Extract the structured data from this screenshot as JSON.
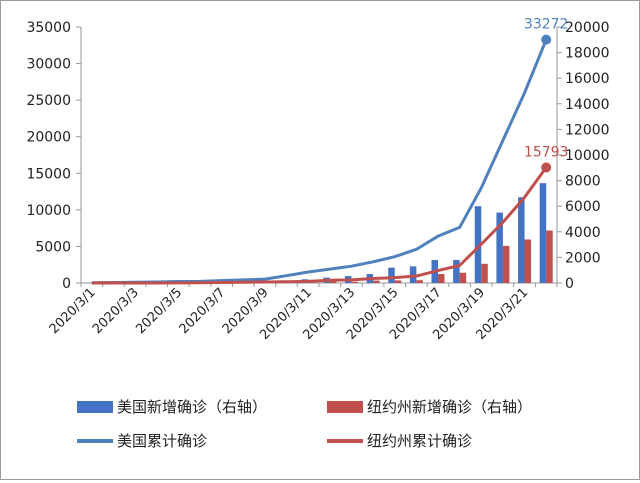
{
  "chart_data": {
    "type": "bar",
    "categories": [
      "2020/3/1",
      "2020/3/2",
      "2020/3/3",
      "2020/3/4",
      "2020/3/5",
      "2020/3/6",
      "2020/3/7",
      "2020/3/8",
      "2020/3/9",
      "2020/3/10",
      "2020/3/11",
      "2020/3/12",
      "2020/3/13",
      "2020/3/14",
      "2020/3/15",
      "2020/3/16",
      "2020/3/17",
      "2020/3/18",
      "2020/3/19",
      "2020/3/20",
      "2020/3/21",
      "2020/3/22"
    ],
    "x_tick_labels": [
      "2020/3/1",
      "2020/3/3",
      "2020/3/5",
      "2020/3/7",
      "2020/3/9",
      "2020/3/11",
      "2020/3/13",
      "2020/3/15",
      "2020/3/17",
      "2020/3/19",
      "2020/3/21"
    ],
    "y_left": {
      "ylim": [
        0,
        35000
      ],
      "ticks": [
        "0",
        "5000",
        "10000",
        "15000",
        "20000",
        "25000",
        "30000",
        "35000"
      ]
    },
    "y_right": {
      "ylim": [
        0,
        20000
      ],
      "ticks": [
        "0",
        "2000",
        "4000",
        "6000",
        "8000",
        "10000",
        "12000",
        "14000",
        "16000",
        "18000",
        "20000"
      ]
    },
    "series": [
      {
        "name": "美国新增确诊（右轴）",
        "kind": "bar",
        "axis": "right",
        "color": "#4472c4",
        "values": [
          10,
          8,
          30,
          20,
          40,
          60,
          70,
          100,
          120,
          200,
          290,
          420,
          540,
          700,
          1200,
          1300,
          1800,
          1800,
          6000,
          5500,
          6700,
          7800
        ]
      },
      {
        "name": "纽约州新增确诊（右轴）",
        "kind": "bar",
        "axis": "right",
        "color": "#c0504d",
        "values": [
          1,
          0,
          1,
          5,
          20,
          11,
          43,
          13,
          36,
          33,
          43,
          158,
          95,
          189,
          203,
          217,
          700,
          800,
          1500,
          2900,
          3400,
          4100
        ]
      },
      {
        "name": "美国累计确诊",
        "kind": "line",
        "axis": "left",
        "color": "#4f81bd",
        "values": [
          30,
          60,
          100,
          130,
          200,
          230,
          330,
          420,
          530,
          1000,
          1500,
          1900,
          2300,
          2900,
          3600,
          4600,
          6400,
          7600,
          13000,
          19500,
          26000,
          33272
        ]
      },
      {
        "name": "纽约州累计确诊",
        "kind": "line",
        "axis": "left",
        "color": "#c0504d",
        "values": [
          1,
          1,
          2,
          3,
          22,
          33,
          76,
          106,
          142,
          173,
          216,
          370,
          421,
          610,
          729,
          950,
          1700,
          2400,
          5300,
          8300,
          11700,
          15793
        ]
      }
    ],
    "annotations": [
      {
        "text": "33272",
        "series": "美国累计确诊",
        "color": "#4f81bd"
      },
      {
        "text": "15793",
        "series": "纽约州累计确诊",
        "color": "#c0504d"
      }
    ],
    "legend_position": "bottom",
    "grid": false
  }
}
